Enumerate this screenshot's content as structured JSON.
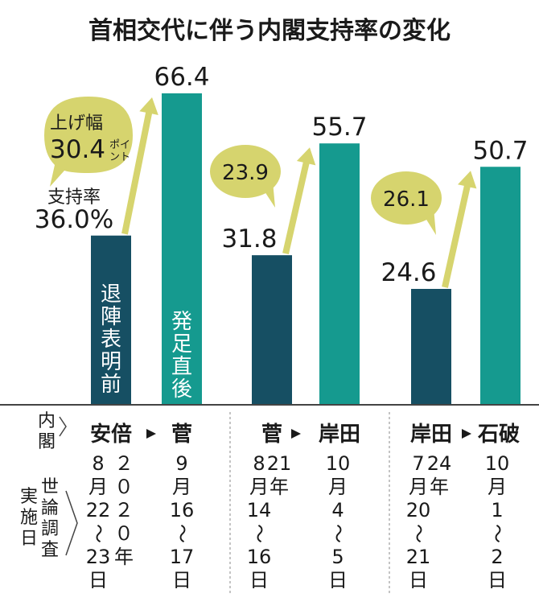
{
  "chart_data": {
    "type": "bar",
    "title": "首相交代に伴う内閣支持率の変化",
    "unit": "%",
    "groups": [
      {
        "cabinet_before": "安倍",
        "cabinet_after": "菅",
        "before_value": 36.0,
        "after_value": 66.4,
        "before_label": "36.0%",
        "after_label": "66.4",
        "increase_label": "30.4",
        "increase_prefix": "上げ幅",
        "increase_unit": "ポイント",
        "before_year": "２０２０年",
        "before_date": [
          "8",
          "月",
          "22",
          "〜",
          "23",
          "日"
        ],
        "after_date": [
          "9",
          "月",
          "16",
          "〜",
          "17",
          "日"
        ]
      },
      {
        "cabinet_before": "菅",
        "cabinet_after": "岸田",
        "before_value": 31.8,
        "after_value": 55.7,
        "before_label": "31.8",
        "after_label": "55.7",
        "increase_label": "23.9",
        "before_year": "21年",
        "before_date": [
          "8",
          "月",
          "14",
          "〜",
          "16",
          "日"
        ],
        "after_date": [
          "10",
          "月",
          "4",
          "〜",
          "5",
          "日"
        ]
      },
      {
        "cabinet_before": "岸田",
        "cabinet_after": "石破",
        "before_value": 24.6,
        "after_value": 50.7,
        "before_label": "24.6",
        "after_label": "50.7",
        "increase_label": "26.1",
        "before_year": "24年",
        "before_date": [
          "7",
          "月",
          "20",
          "〜",
          "21",
          "日"
        ],
        "after_date": [
          "10",
          "月",
          "1",
          "〜",
          "2",
          "日"
        ]
      }
    ],
    "first_bar_rate_label": "支持率",
    "before_bar_label": "退陣表明前",
    "after_bar_label": "発足直後",
    "cabinet_row_label": "内閣",
    "survey_date_label": [
      "世論調査",
      "実施日"
    ],
    "colors": {
      "before": "#164f63",
      "after": "#159a8f",
      "arrow": "#d6d46e",
      "bubble": "#d6d46e"
    }
  }
}
